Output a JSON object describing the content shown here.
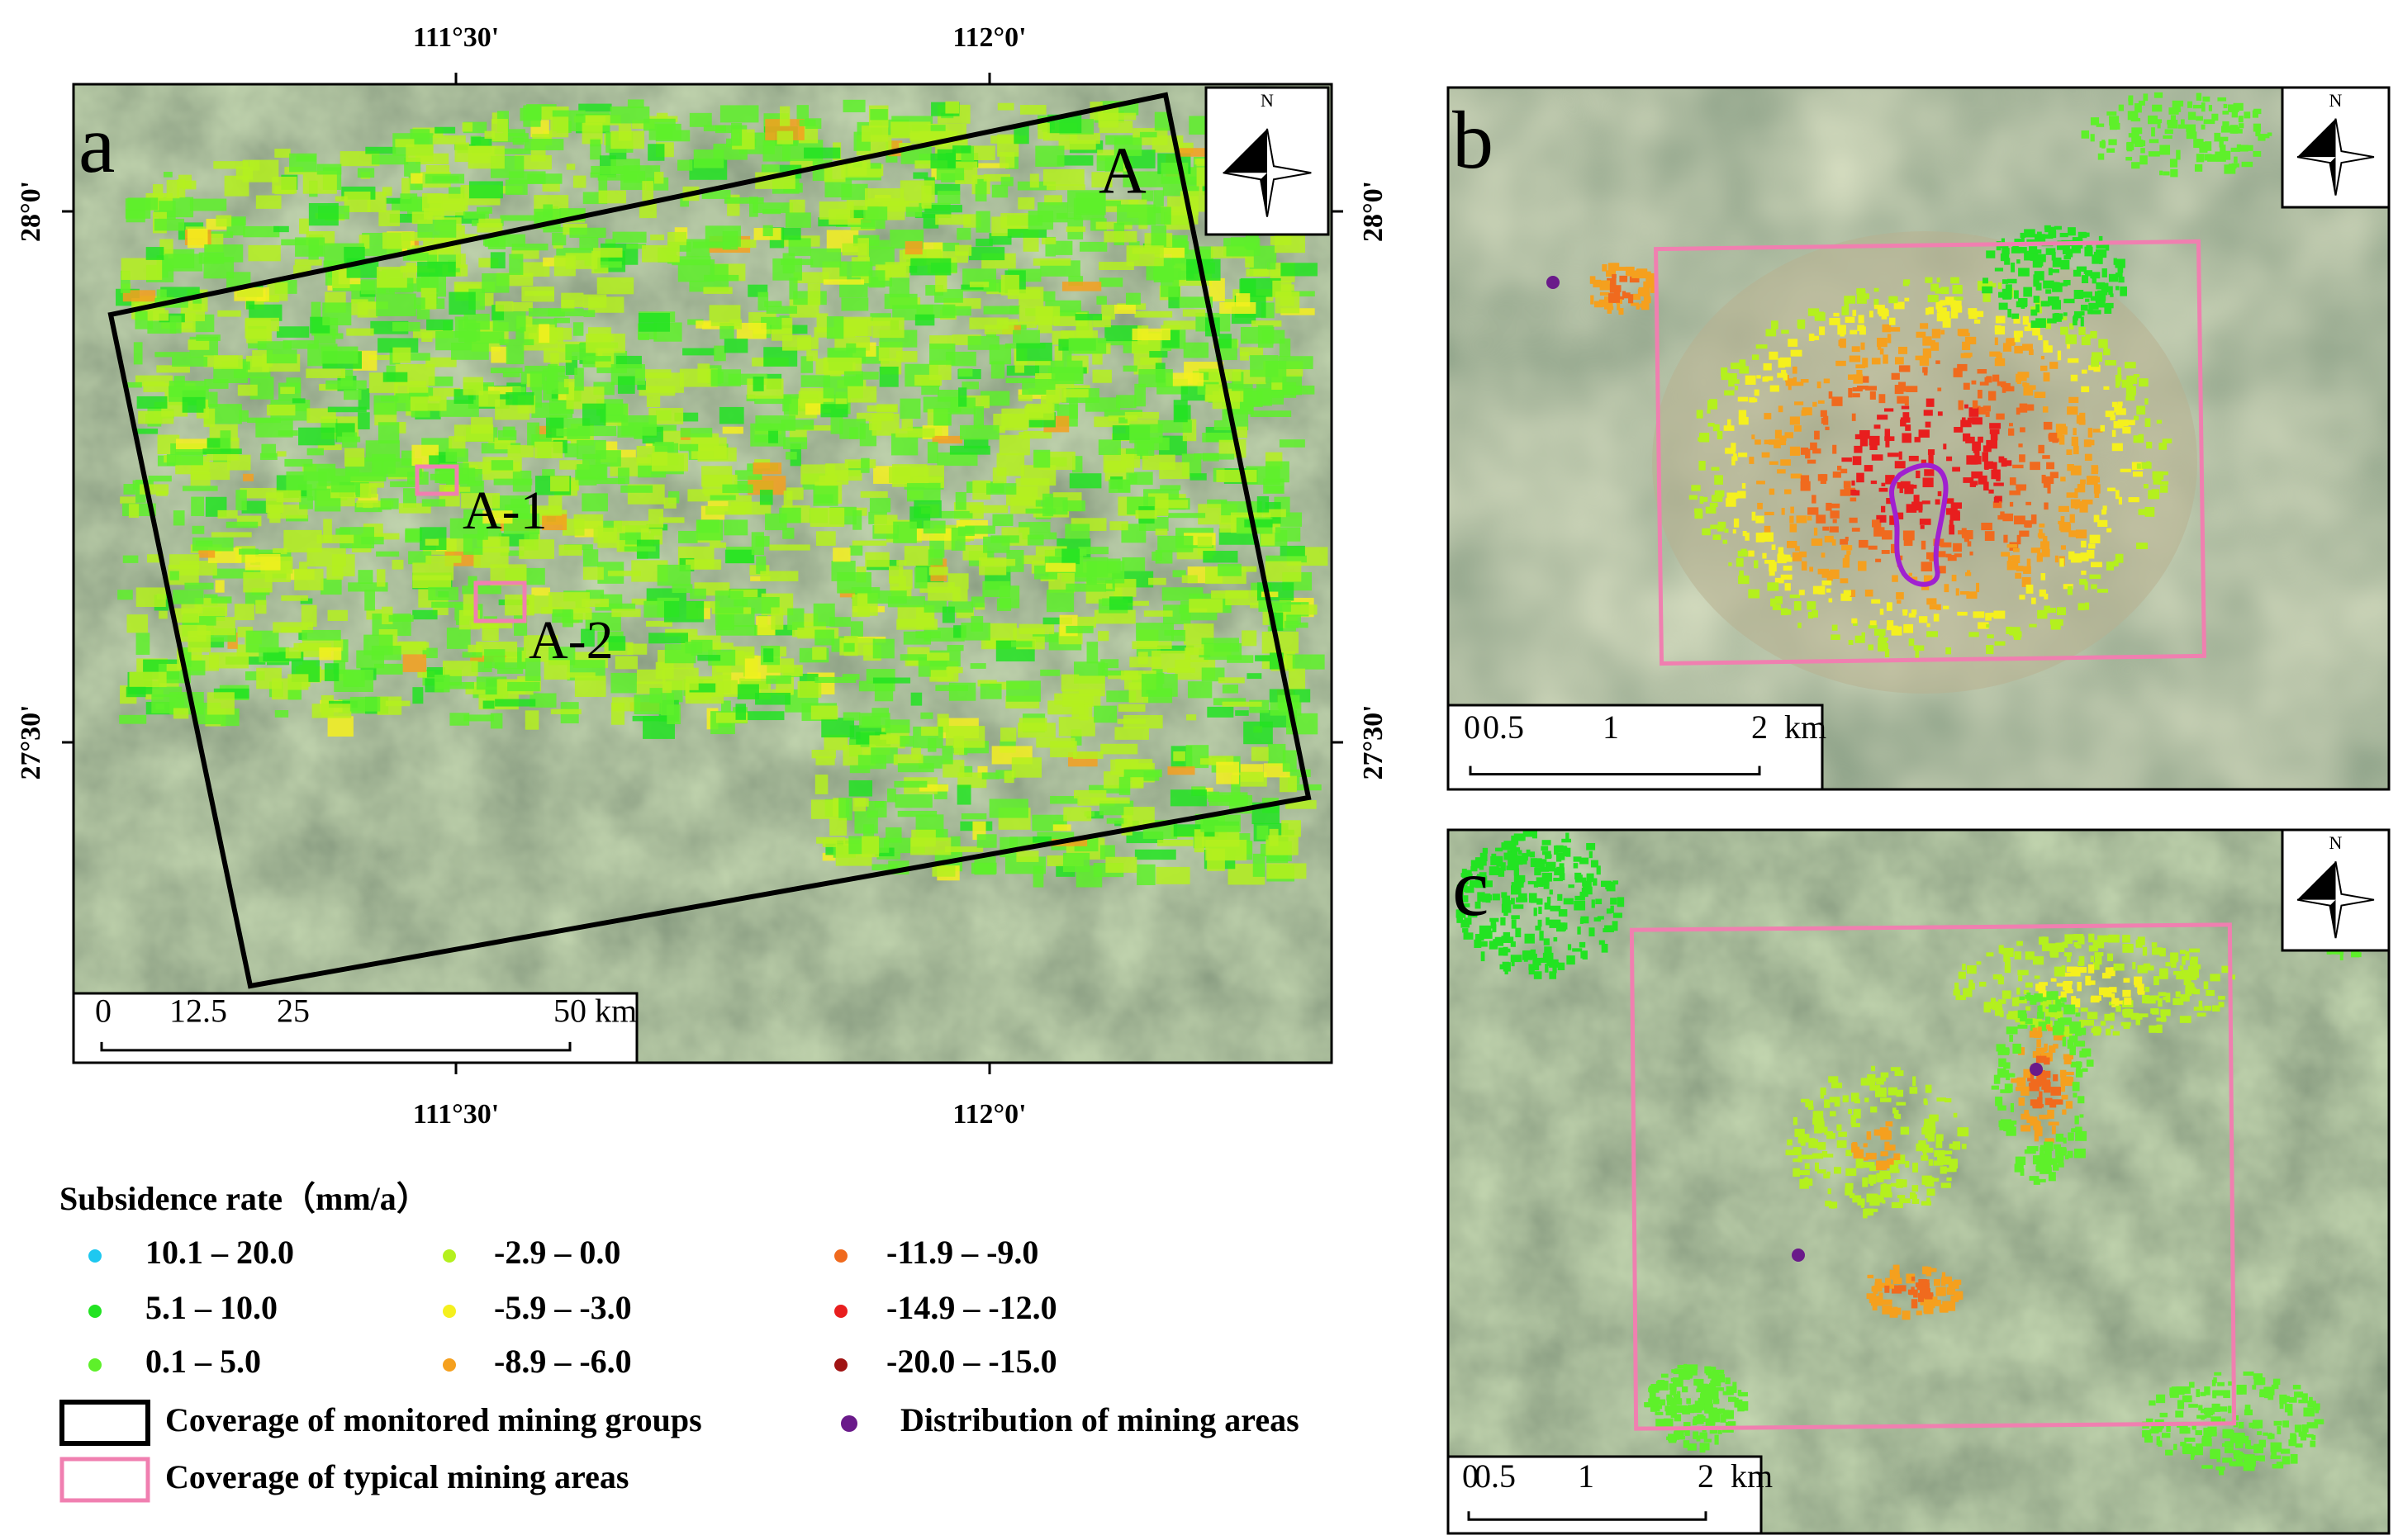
{
  "panel_a": {
    "label": "a",
    "lon_ticks": [
      "111°30'",
      "112°0'"
    ],
    "lat_ticks": [
      "28°0'",
      "27°30'"
    ],
    "region_labels": [
      "A",
      "A-1",
      "A-2"
    ],
    "north": "N",
    "scale_bar": [
      "0",
      "12.5",
      "25",
      "50",
      "km"
    ]
  },
  "panel_b": {
    "label": "b",
    "north": "N",
    "scale_bar": [
      "0",
      "0.5",
      "1",
      "2",
      "km"
    ]
  },
  "panel_c": {
    "label": "c",
    "north": "N",
    "scale_bar": [
      "0",
      "0.5",
      "1",
      "2",
      "km"
    ]
  },
  "legend": {
    "title": "Subsidence rate（mm/a）",
    "classes": [
      {
        "label": "10.1 – 20.0",
        "color": "#1ec8f0"
      },
      {
        "label": "5.1 – 10.0",
        "color": "#22e322"
      },
      {
        "label": "0.1 – 5.0",
        "color": "#5ef02a"
      },
      {
        "label": "-2.9 – 0.0",
        "color": "#b4f01e"
      },
      {
        "label": "-5.9 – -3.0",
        "color": "#f5f01e"
      },
      {
        "label": "-8.9 – -6.0",
        "color": "#f5a01e"
      },
      {
        "label": "-11.9 – -9.0",
        "color": "#f06a1e"
      },
      {
        "label": "-14.9 – -12.0",
        "color": "#e81e1e"
      },
      {
        "label": "-20.0 – -15.0",
        "color": "#a01414"
      }
    ],
    "monitored_coverage": "Coverage of monitored mining groups",
    "typical_coverage": "Coverage of typical mining areas",
    "mining_areas": "Distribution of mining areas"
  }
}
